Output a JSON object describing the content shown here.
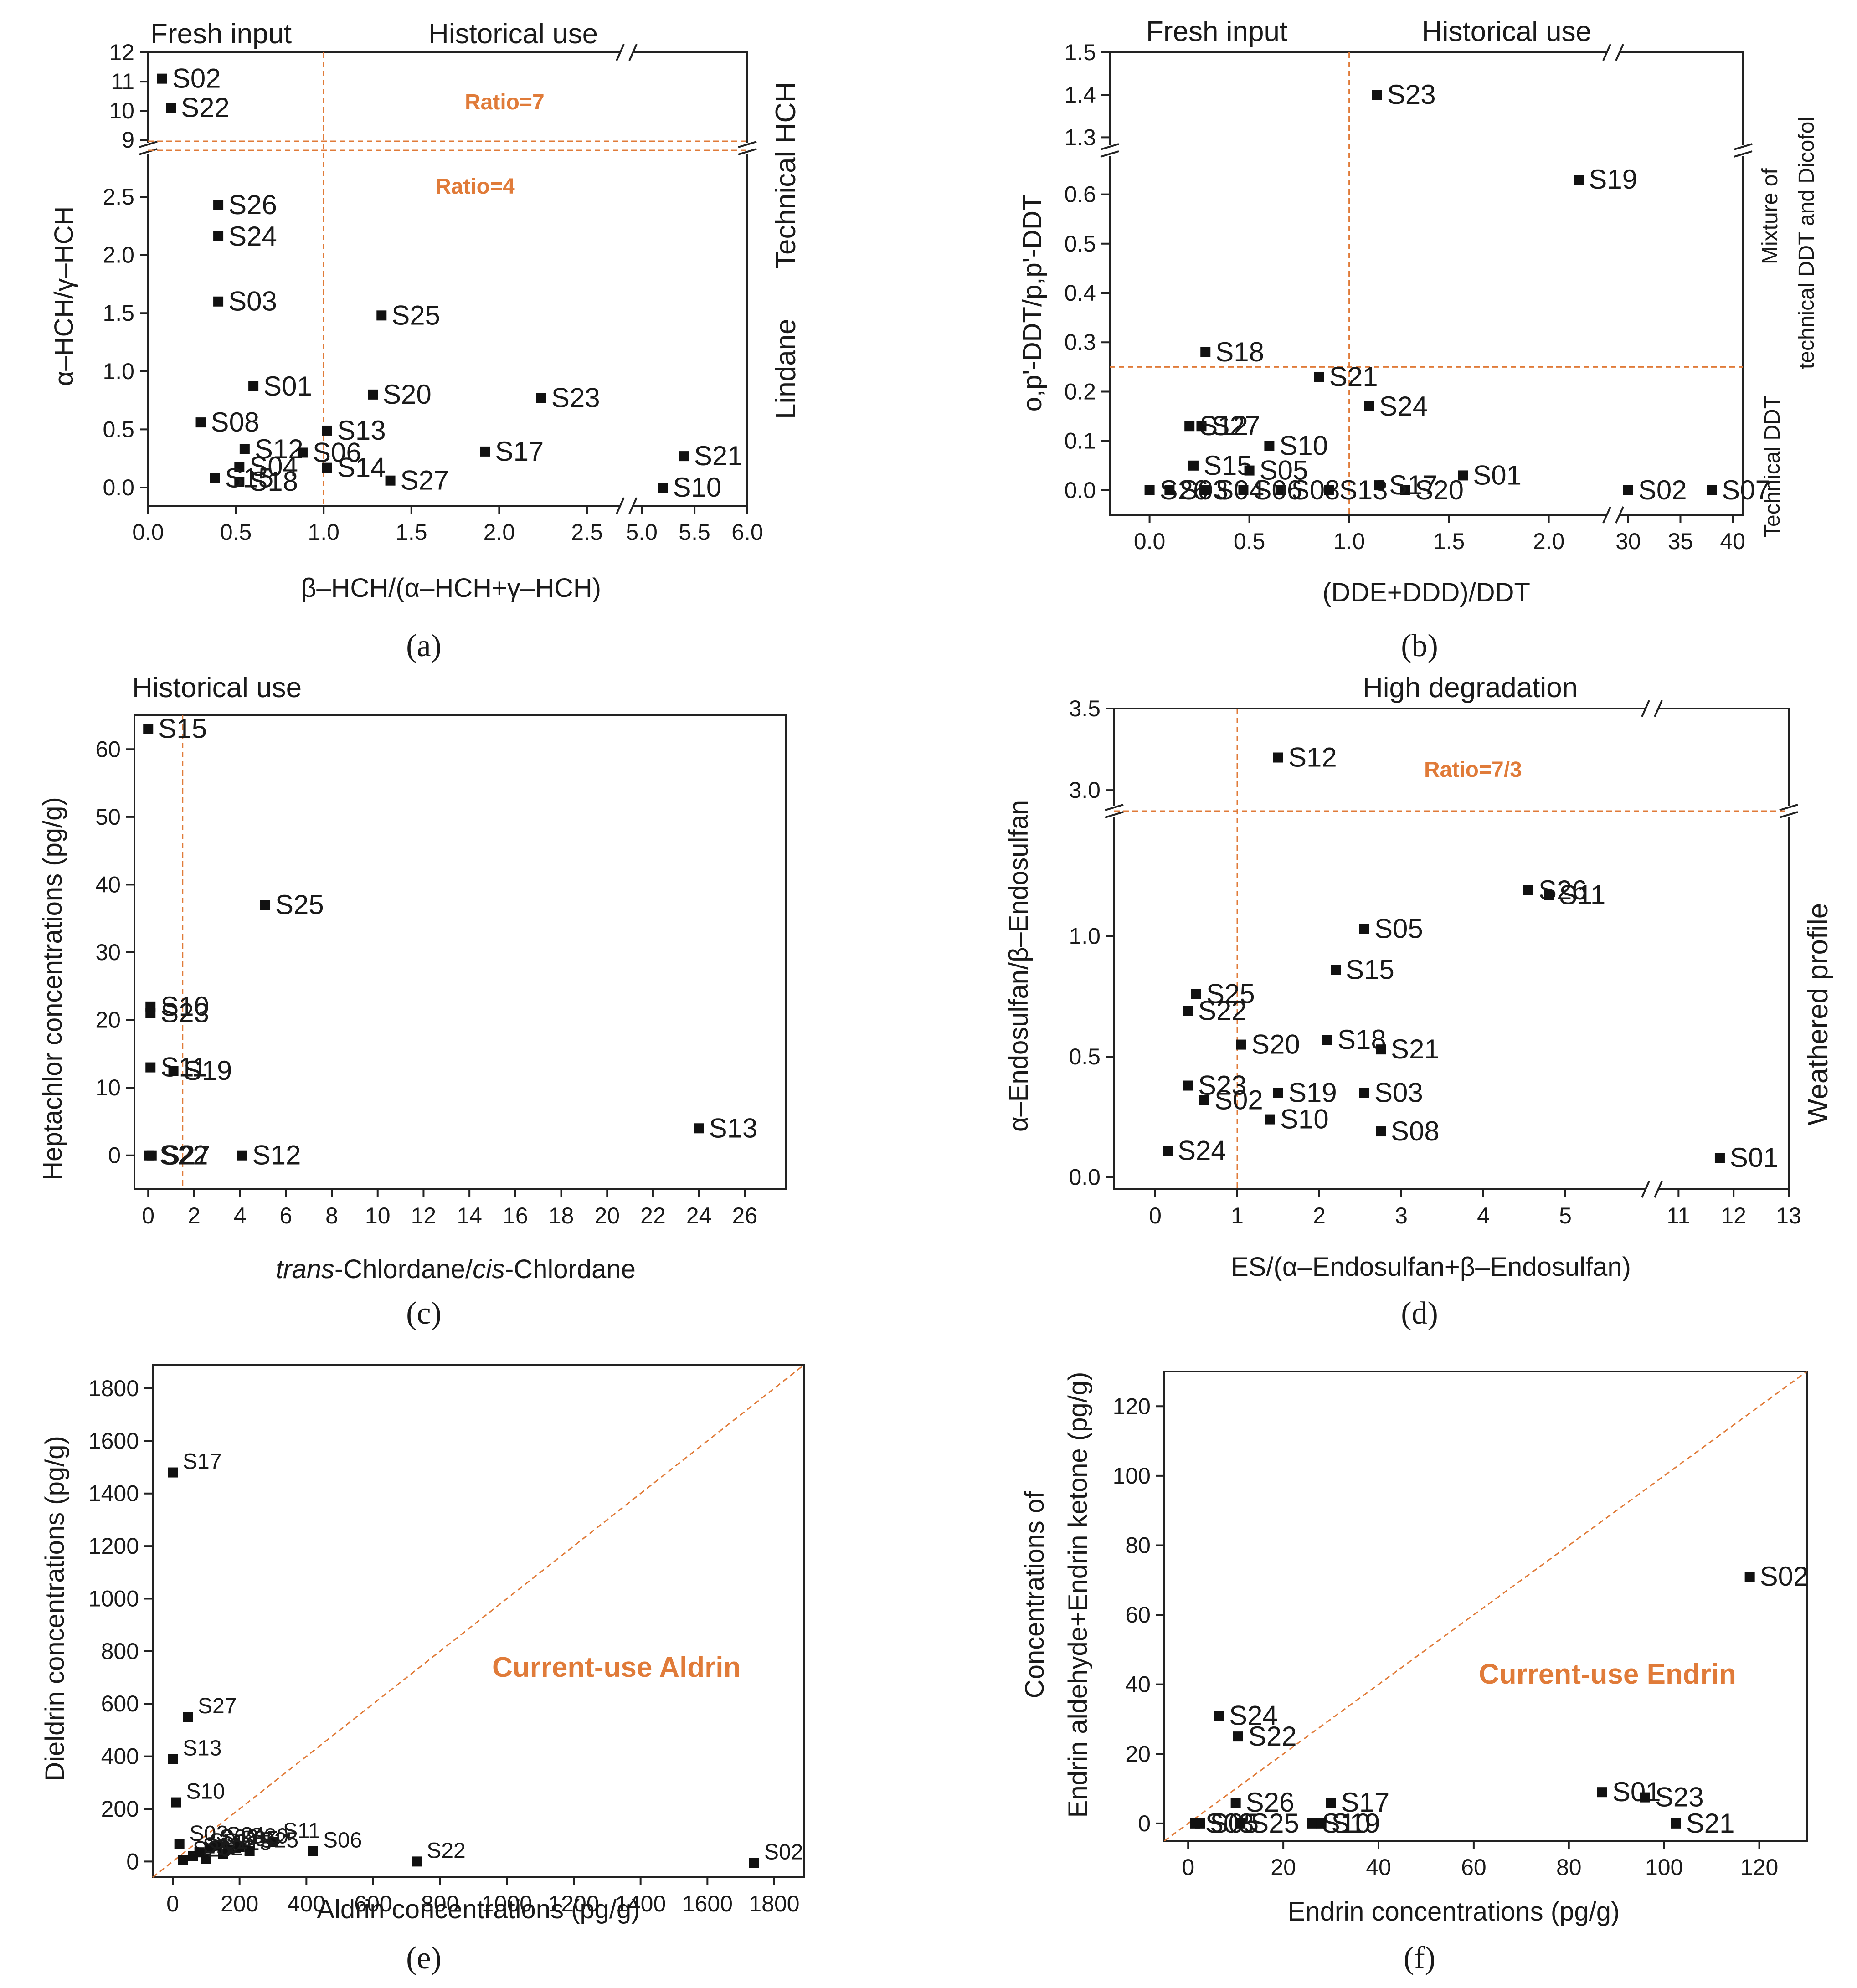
{
  "figure": {
    "panels": [
      {
        "id": "a",
        "tag": "(a)",
        "annotations": [
          "Fresh input",
          "Historical use",
          "Technical HCH",
          "Lindane"
        ],
        "ratio_labels": [
          "Ratio=7",
          "Ratio=4"
        ],
        "chart_data": {
          "type": "scatter",
          "xlabel": "β–HCH/(α–HCH+γ–HCH)",
          "ylabel": "α–HCH/γ–HCH",
          "x_ticks": [
            "0.0",
            "0.5",
            "1.0",
            "1.5",
            "2.0",
            "2.5",
            "5.0",
            "5.5",
            "6.0"
          ],
          "y_ticks": [
            "0.0",
            "0.5",
            "1.0",
            "1.5",
            "2.0",
            "2.5",
            "9",
            "10",
            "11",
            "12"
          ],
          "x_break": [
            2.7,
            4.9
          ],
          "y_break": [
            2.9,
            8.8
          ],
          "xlim": [
            0,
            6.0
          ],
          "ylim": [
            0,
            12
          ],
          "reference_lines": {
            "vertical_x": 1.0,
            "horizontal_y": [
              4,
              7
            ]
          },
          "points": [
            {
              "label": "S02",
              "x": 0.08,
              "y": 11.1
            },
            {
              "label": "S22",
              "x": 0.13,
              "y": 10.1
            },
            {
              "label": "S26",
              "x": 0.4,
              "y": 2.43
            },
            {
              "label": "S24",
              "x": 0.4,
              "y": 2.16
            },
            {
              "label": "S03",
              "x": 0.4,
              "y": 1.6
            },
            {
              "label": "S25",
              "x": 1.33,
              "y": 1.48
            },
            {
              "label": "S01",
              "x": 0.6,
              "y": 0.87
            },
            {
              "label": "S20",
              "x": 1.28,
              "y": 0.8
            },
            {
              "label": "S23",
              "x": 2.24,
              "y": 0.77
            },
            {
              "label": "S08",
              "x": 0.3,
              "y": 0.56
            },
            {
              "label": "S13",
              "x": 1.02,
              "y": 0.49
            },
            {
              "label": "S12",
              "x": 0.55,
              "y": 0.33
            },
            {
              "label": "S06",
              "x": 0.88,
              "y": 0.3
            },
            {
              "label": "S17",
              "x": 1.92,
              "y": 0.31
            },
            {
              "label": "S21",
              "x": 5.4,
              "y": 0.27
            },
            {
              "label": "S14",
              "x": 1.02,
              "y": 0.17
            },
            {
              "label": "S04",
              "x": 0.52,
              "y": 0.18
            },
            {
              "label": "S27",
              "x": 1.38,
              "y": 0.06
            },
            {
              "label": "S18",
              "x": 0.52,
              "y": 0.05
            },
            {
              "label": "S15",
              "x": 0.38,
              "y": 0.08
            },
            {
              "label": "S10",
              "x": 5.2,
              "y": 0.0
            }
          ]
        }
      },
      {
        "id": "b",
        "tag": "(b)",
        "annotations": [
          "Fresh input",
          "Historical use",
          "Mixture of",
          "technical DDT and Dicofol",
          "Technical DDT"
        ],
        "chart_data": {
          "type": "scatter",
          "xlabel": "(DDE+DDD)/DDT",
          "ylabel": "o,p'-DDT/p,p'-DDT",
          "x_ticks": [
            "0.0",
            "0.5",
            "1.0",
            "1.5",
            "2.0",
            "30",
            "35",
            "40"
          ],
          "y_ticks": [
            "0.0",
            "0.1",
            "0.2",
            "0.3",
            "0.4",
            "0.5",
            "0.6",
            "1.3",
            "1.4",
            "1.5"
          ],
          "x_break": [
            2.3,
            29
          ],
          "y_break": [
            0.68,
            1.28
          ],
          "xlim": [
            -0.2,
            41
          ],
          "ylim": [
            -0.05,
            1.5
          ],
          "reference_lines": {
            "vertical_x": 1.0,
            "horizontal_y": [
              0.25
            ]
          },
          "points": [
            {
              "label": "S23",
              "x": 1.14,
              "y": 1.4
            },
            {
              "label": "S19",
              "x": 2.15,
              "y": 0.63
            },
            {
              "label": "S18",
              "x": 0.28,
              "y": 0.28
            },
            {
              "label": "S21",
              "x": 0.85,
              "y": 0.23
            },
            {
              "label": "S24",
              "x": 1.1,
              "y": 0.17
            },
            {
              "label": "S27",
              "x": 0.26,
              "y": 0.13
            },
            {
              "label": "S12",
              "x": 0.2,
              "y": 0.13
            },
            {
              "label": "S10",
              "x": 0.6,
              "y": 0.09
            },
            {
              "label": "S01",
              "x": 1.57,
              "y": 0.03
            },
            {
              "label": "S15",
              "x": 0.22,
              "y": 0.05
            },
            {
              "label": "S05",
              "x": 0.5,
              "y": 0.04
            },
            {
              "label": "S08",
              "x": 0.66,
              "y": 0.0
            },
            {
              "label": "S13",
              "x": 0.9,
              "y": 0.0
            },
            {
              "label": "S20",
              "x": 1.28,
              "y": 0.0
            },
            {
              "label": "S17",
              "x": 1.15,
              "y": 0.01
            },
            {
              "label": "S26",
              "x": 0.0,
              "y": 0.0
            },
            {
              "label": "S03",
              "x": 0.1,
              "y": 0.0
            },
            {
              "label": "S04",
              "x": 0.28,
              "y": 0.0
            },
            {
              "label": "S06",
              "x": 0.47,
              "y": 0.0
            },
            {
              "label": "S02",
              "x": 30.0,
              "y": 0.0
            },
            {
              "label": "S07",
              "x": 38.0,
              "y": 0.0
            }
          ]
        }
      },
      {
        "id": "c",
        "tag": "(c)",
        "annotations": [
          "Historical use"
        ],
        "chart_data": {
          "type": "scatter",
          "xlabel_italic": "trans",
          "xlabel_mid": "-Chlordane/",
          "xlabel_italic2": "cis",
          "xlabel_end": "-Chlordane",
          "ylabel": "Heptachlor concentrations (pg/g)",
          "x_ticks": [
            "0",
            "2",
            "4",
            "6",
            "8",
            "10",
            "12",
            "14",
            "16",
            "18",
            "20",
            "22",
            "24",
            "26"
          ],
          "y_ticks": [
            "0",
            "10",
            "20",
            "30",
            "40",
            "50",
            "60"
          ],
          "xlim": [
            -0.6,
            27.8
          ],
          "ylim": [
            -5,
            65
          ],
          "reference_lines": {
            "vertical_x": 1.5
          },
          "points": [
            {
              "label": "S15",
              "x": 0.0,
              "y": 63
            },
            {
              "label": "S25",
              "x": 5.1,
              "y": 37
            },
            {
              "label": "S10",
              "x": 0.1,
              "y": 22
            },
            {
              "label": "S23",
              "x": 0.1,
              "y": 21
            },
            {
              "label": "S11",
              "x": 0.1,
              "y": 13
            },
            {
              "label": "S19",
              "x": 1.1,
              "y": 12.5
            },
            {
              "label": "S13",
              "x": 24.0,
              "y": 4
            },
            {
              "label": "S22",
              "x": 0.05,
              "y": 0
            },
            {
              "label": "S27",
              "x": 0.15,
              "y": 0
            },
            {
              "label": "S12",
              "x": 4.1,
              "y": 0
            }
          ]
        }
      },
      {
        "id": "d",
        "tag": "(d)",
        "annotations": [
          "High degradation",
          "Weathered profile"
        ],
        "ratio_labels": [
          "Ratio=7/3"
        ],
        "chart_data": {
          "type": "scatter",
          "xlabel": "ES/(α–Endosulfan+β–Endosulfan)",
          "ylabel": "α–Endosulfan/β–Endosulfan",
          "x_ticks": [
            "0",
            "1",
            "2",
            "3",
            "4",
            "5",
            "11",
            "12",
            "13"
          ],
          "y_ticks": [
            "0.0",
            "0.5",
            "1.0",
            "3.0",
            "3.5"
          ],
          "x_break": [
            6,
            10.6
          ],
          "y_break": [
            1.5,
            2.9
          ],
          "xlim": [
            -0.5,
            13
          ],
          "ylim": [
            -0.05,
            3.5
          ],
          "reference_lines": {
            "vertical_x": 1.0,
            "horizontal_y": [
              2.333
            ]
          },
          "points": [
            {
              "label": "S12",
              "x": 1.5,
              "y": 3.2
            },
            {
              "label": "S26",
              "x": 4.55,
              "y": 1.19
            },
            {
              "label": "S11",
              "x": 4.8,
              "y": 1.17
            },
            {
              "label": "S05",
              "x": 2.55,
              "y": 1.03
            },
            {
              "label": "S15",
              "x": 2.2,
              "y": 0.86
            },
            {
              "label": "S25",
              "x": 0.5,
              "y": 0.76
            },
            {
              "label": "S22",
              "x": 0.4,
              "y": 0.69
            },
            {
              "label": "S20",
              "x": 1.05,
              "y": 0.55
            },
            {
              "label": "S18",
              "x": 2.1,
              "y": 0.57
            },
            {
              "label": "S21",
              "x": 2.75,
              "y": 0.53
            },
            {
              "label": "S23",
              "x": 0.4,
              "y": 0.38
            },
            {
              "label": "S02",
              "x": 0.6,
              "y": 0.32
            },
            {
              "label": "S19",
              "x": 1.5,
              "y": 0.35
            },
            {
              "label": "S03",
              "x": 2.55,
              "y": 0.35
            },
            {
              "label": "S10",
              "x": 1.4,
              "y": 0.24
            },
            {
              "label": "S08",
              "x": 2.75,
              "y": 0.19
            },
            {
              "label": "S24",
              "x": 0.15,
              "y": 0.11
            },
            {
              "label": "S01",
              "x": 11.75,
              "y": 0.08
            }
          ]
        }
      },
      {
        "id": "e",
        "tag": "(e)",
        "annotations": [
          "Current-use Aldrin"
        ],
        "chart_data": {
          "type": "scatter",
          "xlabel": "Aldrin concentrations (pg/g)",
          "ylabel": "Dieldrin concentrations (pg/g)",
          "x_ticks": [
            "0",
            "200",
            "400",
            "600",
            "800",
            "1000",
            "1200",
            "1400",
            "1600",
            "1800"
          ],
          "y_ticks": [
            "0",
            "200",
            "400",
            "600",
            "800",
            "1000",
            "1200",
            "1400",
            "1600",
            "1800"
          ],
          "xlim": [
            -60,
            1890
          ],
          "ylim": [
            -60,
            1890
          ],
          "reference_lines": {
            "diagonal": true
          },
          "points": [
            {
              "label": "S17",
              "x": 0,
              "y": 1480
            },
            {
              "label": "S27",
              "x": 45,
              "y": 550
            },
            {
              "label": "S13",
              "x": 0,
              "y": 390
            },
            {
              "label": "S10",
              "x": 10,
              "y": 225
            },
            {
              "label": "S11",
              "x": 300,
              "y": 75
            },
            {
              "label": "S06",
              "x": 420,
              "y": 40
            },
            {
              "label": "S22",
              "x": 730,
              "y": 0
            },
            {
              "label": "S02",
              "x": 1740,
              "y": -5
            },
            {
              "label": "S03",
              "x": 20,
              "y": 65
            },
            {
              "label": "S05",
              "x": 170,
              "y": 45
            },
            {
              "label": "S08",
              "x": 110,
              "y": 50
            },
            {
              "label": "S12",
              "x": 60,
              "y": 20
            },
            {
              "label": "S15",
              "x": 150,
              "y": 30
            },
            {
              "label": "S20",
              "x": 200,
              "y": 55
            },
            {
              "label": "S21",
              "x": 100,
              "y": 10
            },
            {
              "label": "S24",
              "x": 130,
              "y": 60
            },
            {
              "label": "S25",
              "x": 230,
              "y": 40
            },
            {
              "label": "S26",
              "x": 30,
              "y": 5
            },
            {
              "label": "S01",
              "x": 80,
              "y": 35
            }
          ]
        }
      },
      {
        "id": "f",
        "tag": "(f)",
        "annotations": [
          "Current-use Endrin"
        ],
        "chart_data": {
          "type": "scatter",
          "xlabel": "Endrin concentrations (pg/g)",
          "ylabel_line1": "Concentrations of",
          "ylabel_line2": "Endrin aldehyde+Endrin ketone (pg/g)",
          "x_ticks": [
            "0",
            "20",
            "40",
            "60",
            "80",
            "100",
            "120"
          ],
          "y_ticks": [
            "0",
            "20",
            "40",
            "60",
            "80",
            "100",
            "120"
          ],
          "xlim": [
            -5,
            130
          ],
          "ylim": [
            -5,
            130
          ],
          "reference_lines": {
            "diagonal": true
          },
          "points": [
            {
              "label": "S02",
              "x": 118,
              "y": 71
            },
            {
              "label": "S24",
              "x": 6.5,
              "y": 31
            },
            {
              "label": "S22",
              "x": 10.5,
              "y": 25
            },
            {
              "label": "S26",
              "x": 10,
              "y": 6
            },
            {
              "label": "S17",
              "x": 30,
              "y": 6
            },
            {
              "label": "S01",
              "x": 87,
              "y": 9
            },
            {
              "label": "S23",
              "x": 96,
              "y": 7.5
            },
            {
              "label": "S21",
              "x": 102.5,
              "y": 0
            },
            {
              "label": "S03",
              "x": 1.5,
              "y": 0
            },
            {
              "label": "S05",
              "x": 2.5,
              "y": 0
            },
            {
              "label": "S25",
              "x": 11,
              "y": 0
            },
            {
              "label": "S10",
              "x": 26,
              "y": 0
            },
            {
              "label": "S19",
              "x": 28,
              "y": 0
            }
          ]
        }
      }
    ]
  }
}
